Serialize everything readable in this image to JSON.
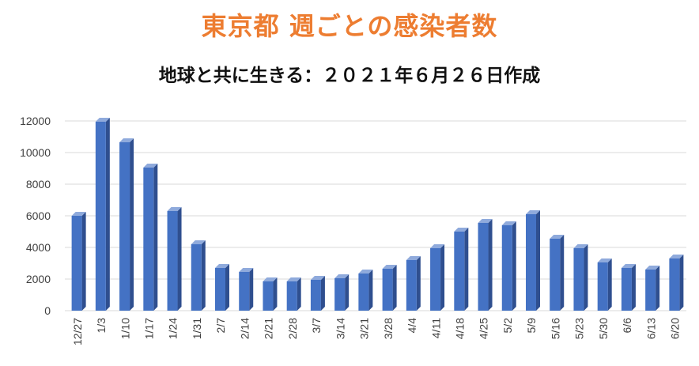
{
  "chart_data": {
    "type": "bar",
    "title": "東京都 週ごとの感染者数",
    "subtitle": "地球と共に生きる：２０２１年６月２６日作成",
    "xlabel": "",
    "ylabel": "",
    "ylim": [
      0,
      12000
    ],
    "yticks": [
      0,
      2000,
      4000,
      6000,
      8000,
      10000,
      12000
    ],
    "grid": true,
    "categories": [
      "12/27",
      "1/3",
      "1/10",
      "1/17",
      "1/24",
      "1/31",
      "2/7",
      "2/14",
      "2/21",
      "2/28",
      "3/7",
      "3/14",
      "3/21",
      "3/28",
      "4/4",
      "4/11",
      "4/18",
      "4/25",
      "5/2",
      "5/9",
      "5/16",
      "5/23",
      "5/30",
      "6/6",
      "6/13",
      "6/20"
    ],
    "values": [
      6000,
      11950,
      10650,
      9050,
      6300,
      4200,
      2700,
      2450,
      1850,
      1850,
      1950,
      2050,
      2350,
      2650,
      3200,
      3950,
      5000,
      5550,
      5400,
      6100,
      4550,
      3950,
      3050,
      2700,
      2600,
      3300
    ],
    "colors": {
      "title": "#ED7D31",
      "bar_front": "#4472C4",
      "bar_side": "#2F4F8F",
      "bar_top": "#8FAADC",
      "grid": "#D9D9D9"
    }
  }
}
